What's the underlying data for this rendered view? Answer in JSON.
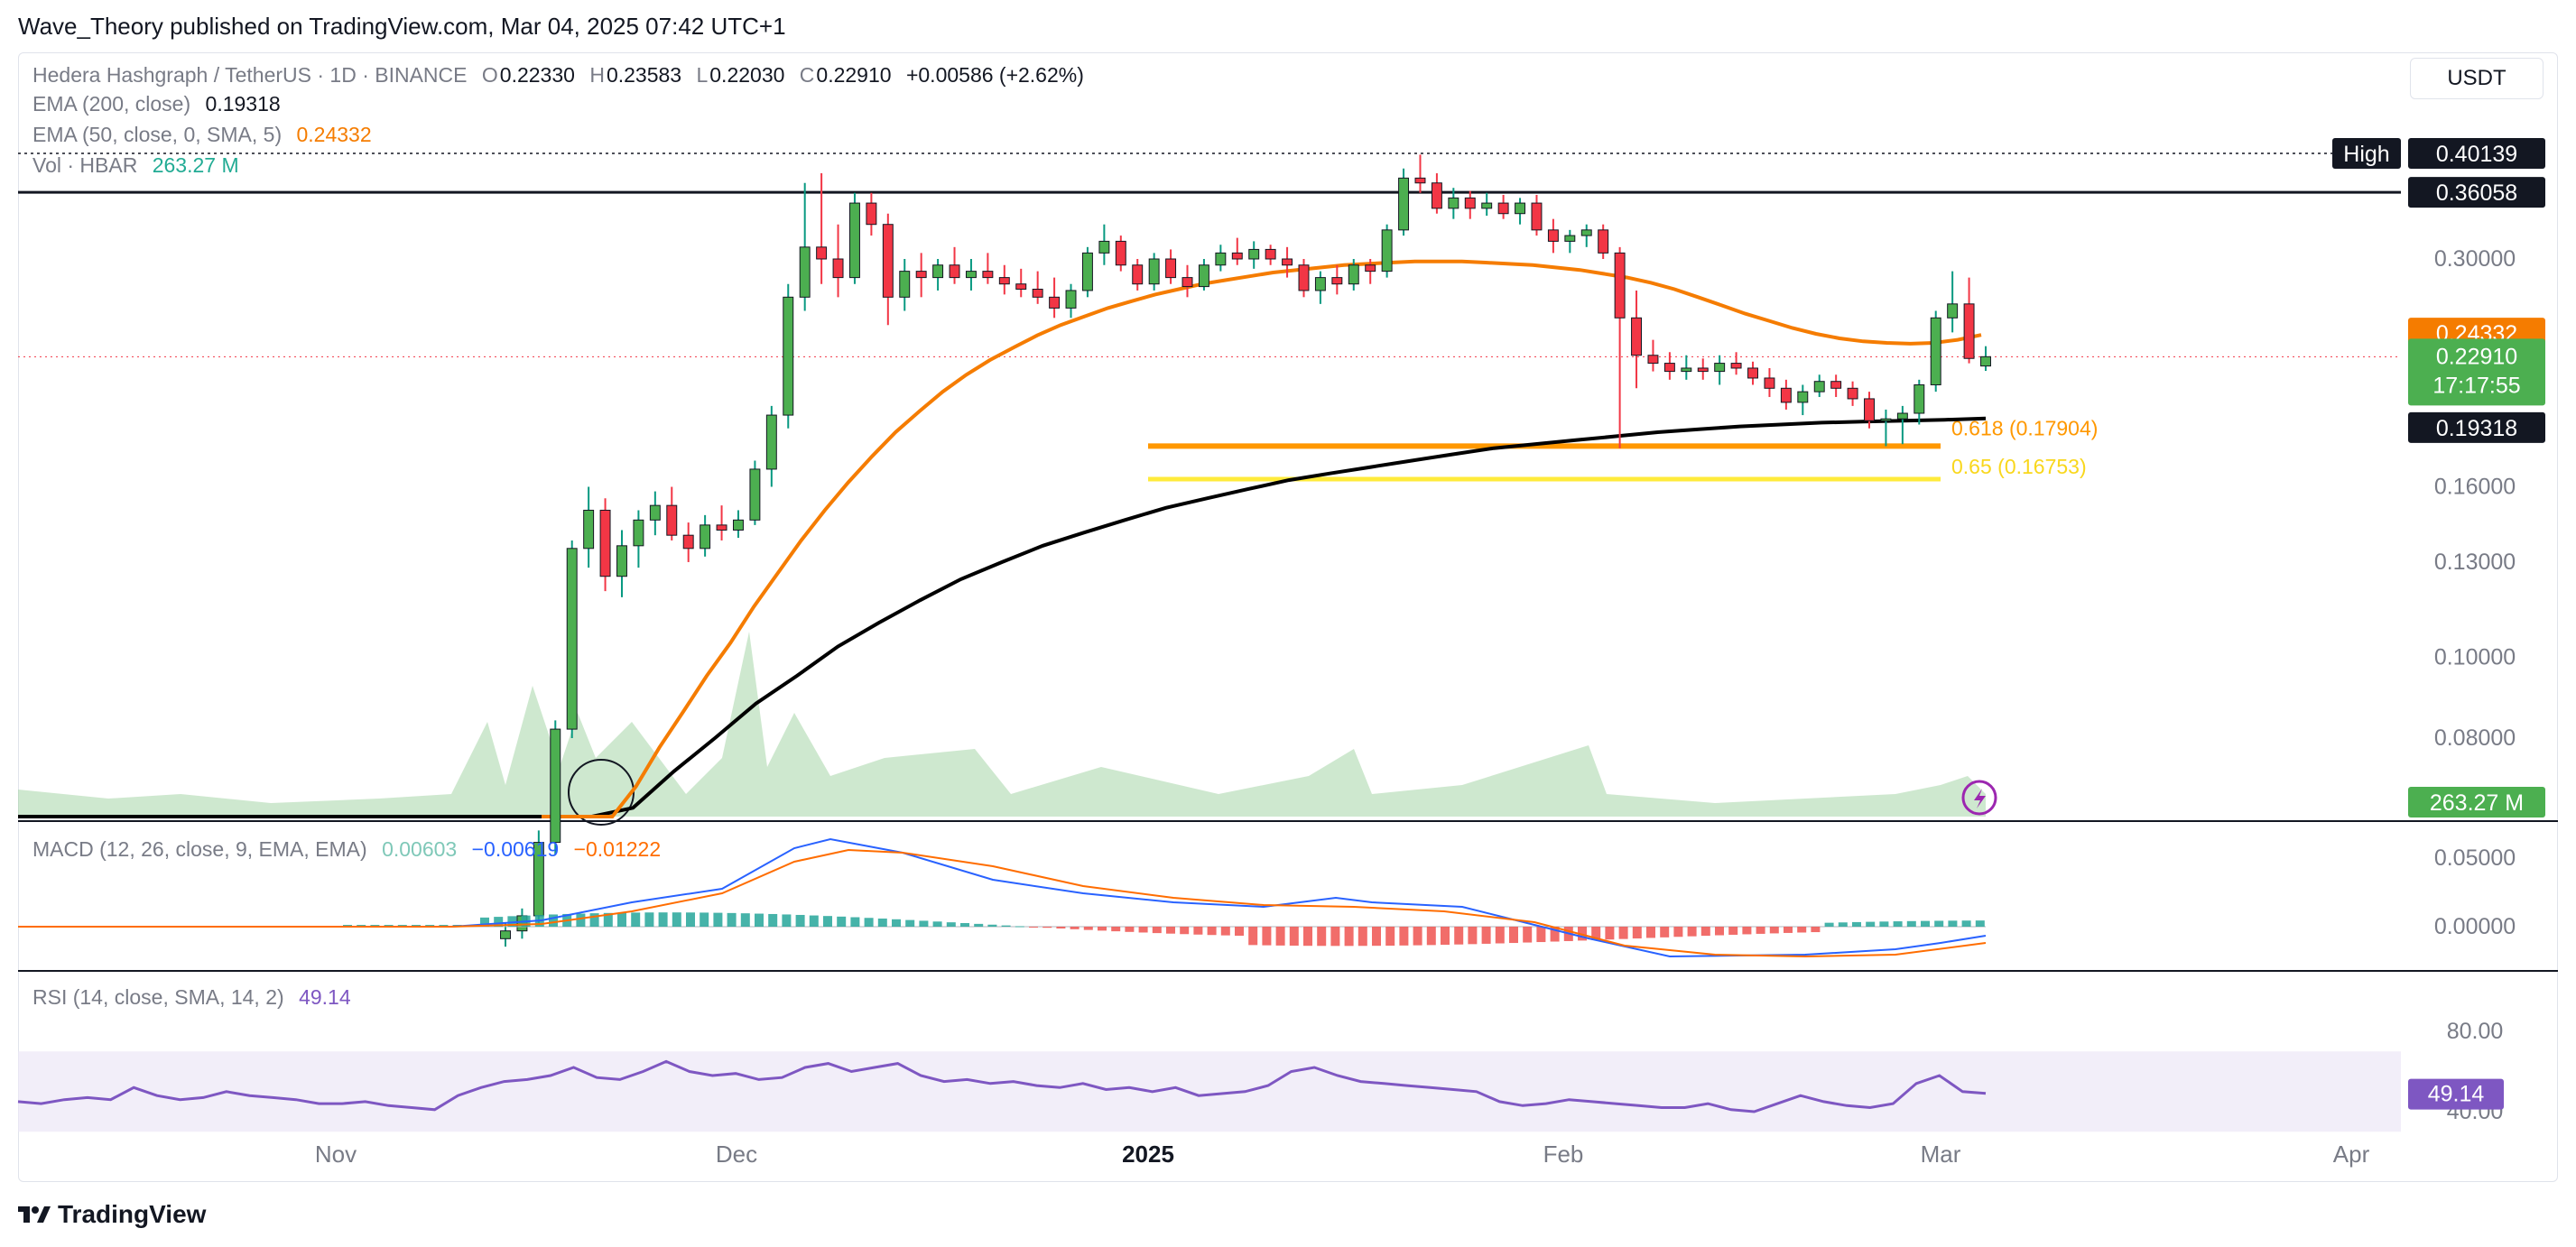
{
  "publish_line": "Wave_Theory published on TradingView.com, Mar 04, 2025 07:42 UTC+1",
  "currency": "USDT",
  "legend": {
    "symbol": "Hedera Hashgraph / TetherUS · 1D · BINANCE",
    "open_key": "O",
    "open": "0.22330",
    "high_key": "H",
    "high": "0.23583",
    "low_key": "L",
    "low": "0.22030",
    "close_key": "C",
    "close": "0.22910",
    "change": "+0.00586 (+2.62%)",
    "ema200_label": "EMA (200, close)",
    "ema200_value": "0.19318",
    "ema50_label": "EMA (50, close, 0, SMA, 5)",
    "ema50_value": "0.24332",
    "vol_label": "Vol · HBAR",
    "vol_value": "263.27 M"
  },
  "macd_legend": {
    "label": "MACD (12, 26, close, 9, EMA, EMA)",
    "hist": "0.00603",
    "macd": "−0.00619",
    "signal": "−0.01222"
  },
  "rsi_legend": {
    "label": "RSI (14, close, SMA, 14, 2)",
    "value": "49.14"
  },
  "footer": "TradingView",
  "colors": {
    "up": "#089981",
    "up_fill": "#4caf50",
    "down": "#f23645",
    "ema50": "#f57c00",
    "ema200": "#000000",
    "fib618": "#ff9800",
    "fib65": "#ffeb3b",
    "macd_line": "#2962ff",
    "signal_line": "#ff6d00",
    "rsi": "#7e57c2",
    "text_muted": "#787b86"
  },
  "chart_data": {
    "type": "candlestick",
    "symbol": "Hedera Hashgraph / TetherUS",
    "interval": "1D",
    "exchange": "BINANCE",
    "x_ticks": [
      "Nov",
      "Dec",
      "2025",
      "Feb",
      "Mar",
      "Apr"
    ],
    "price_ticks": [
      "0.30000",
      "0.16000",
      "0.13000",
      "0.10000",
      "0.08000"
    ],
    "price_scale": "log",
    "price_labels": {
      "high": {
        "label": "High",
        "value": "0.40139"
      },
      "resistance": "0.36058",
      "ema50": "0.24332",
      "last": "0.22910",
      "countdown": "17:17:55",
      "ema200": "0.19318",
      "volume": "263.27 M"
    },
    "horizontal_lines": [
      {
        "name": "High",
        "value": 0.40139
      },
      {
        "name": "Resistance",
        "value": 0.36058
      },
      {
        "name": "0.618",
        "value": 0.17904,
        "label": "0.618 (0.17904)"
      },
      {
        "name": "0.65",
        "value": 0.16753,
        "label": "0.65 (0.16753)"
      }
    ],
    "ohlc": [
      [
        0.046,
        0.048,
        0.045,
        0.047
      ],
      [
        0.047,
        0.05,
        0.046,
        0.049
      ],
      [
        0.049,
        0.062,
        0.048,
        0.06
      ],
      [
        0.06,
        0.084,
        0.058,
        0.082
      ],
      [
        0.082,
        0.138,
        0.08,
        0.135
      ],
      [
        0.135,
        0.16,
        0.128,
        0.15
      ],
      [
        0.15,
        0.155,
        0.12,
        0.125
      ],
      [
        0.125,
        0.142,
        0.118,
        0.136
      ],
      [
        0.136,
        0.15,
        0.128,
        0.146
      ],
      [
        0.146,
        0.158,
        0.14,
        0.152
      ],
      [
        0.152,
        0.16,
        0.138,
        0.14
      ],
      [
        0.14,
        0.145,
        0.13,
        0.135
      ],
      [
        0.135,
        0.148,
        0.132,
        0.144
      ],
      [
        0.144,
        0.152,
        0.138,
        0.142
      ],
      [
        0.142,
        0.15,
        0.139,
        0.146
      ],
      [
        0.146,
        0.172,
        0.144,
        0.168
      ],
      [
        0.168,
        0.2,
        0.16,
        0.195
      ],
      [
        0.195,
        0.28,
        0.188,
        0.27
      ],
      [
        0.27,
        0.37,
        0.26,
        0.31
      ],
      [
        0.31,
        0.38,
        0.28,
        0.3
      ],
      [
        0.3,
        0.33,
        0.27,
        0.285
      ],
      [
        0.285,
        0.36,
        0.28,
        0.35
      ],
      [
        0.35,
        0.36,
        0.32,
        0.33
      ],
      [
        0.33,
        0.34,
        0.25,
        0.27
      ],
      [
        0.27,
        0.3,
        0.26,
        0.29
      ],
      [
        0.29,
        0.305,
        0.27,
        0.285
      ],
      [
        0.285,
        0.3,
        0.275,
        0.295
      ],
      [
        0.295,
        0.31,
        0.28,
        0.285
      ],
      [
        0.285,
        0.3,
        0.275,
        0.29
      ],
      [
        0.29,
        0.305,
        0.28,
        0.285
      ],
      [
        0.285,
        0.295,
        0.272,
        0.28
      ],
      [
        0.28,
        0.292,
        0.27,
        0.276
      ],
      [
        0.276,
        0.29,
        0.265,
        0.27
      ],
      [
        0.27,
        0.285,
        0.255,
        0.262
      ],
      [
        0.262,
        0.28,
        0.255,
        0.275
      ],
      [
        0.275,
        0.31,
        0.27,
        0.305
      ],
      [
        0.305,
        0.33,
        0.295,
        0.315
      ],
      [
        0.315,
        0.32,
        0.29,
        0.295
      ],
      [
        0.295,
        0.3,
        0.275,
        0.28
      ],
      [
        0.28,
        0.305,
        0.275,
        0.3
      ],
      [
        0.3,
        0.308,
        0.28,
        0.285
      ],
      [
        0.285,
        0.295,
        0.27,
        0.278
      ],
      [
        0.278,
        0.3,
        0.275,
        0.295
      ],
      [
        0.295,
        0.312,
        0.29,
        0.305
      ],
      [
        0.305,
        0.318,
        0.295,
        0.3
      ],
      [
        0.3,
        0.315,
        0.292,
        0.308
      ],
      [
        0.308,
        0.312,
        0.295,
        0.3
      ],
      [
        0.3,
        0.31,
        0.285,
        0.295
      ],
      [
        0.295,
        0.3,
        0.27,
        0.275
      ],
      [
        0.275,
        0.29,
        0.265,
        0.285
      ],
      [
        0.285,
        0.295,
        0.272,
        0.28
      ],
      [
        0.28,
        0.3,
        0.275,
        0.295
      ],
      [
        0.295,
        0.3,
        0.28,
        0.29
      ],
      [
        0.29,
        0.33,
        0.285,
        0.325
      ],
      [
        0.325,
        0.385,
        0.32,
        0.375
      ],
      [
        0.375,
        0.4,
        0.36,
        0.37
      ],
      [
        0.37,
        0.38,
        0.34,
        0.345
      ],
      [
        0.345,
        0.365,
        0.335,
        0.355
      ],
      [
        0.355,
        0.362,
        0.335,
        0.345
      ],
      [
        0.345,
        0.36,
        0.338,
        0.35
      ],
      [
        0.35,
        0.358,
        0.335,
        0.34
      ],
      [
        0.34,
        0.355,
        0.33,
        0.35
      ],
      [
        0.35,
        0.358,
        0.32,
        0.325
      ],
      [
        0.325,
        0.335,
        0.305,
        0.315
      ],
      [
        0.315,
        0.325,
        0.305,
        0.32
      ],
      [
        0.32,
        0.33,
        0.31,
        0.325
      ],
      [
        0.325,
        0.33,
        0.3,
        0.305
      ],
      [
        0.305,
        0.31,
        0.178,
        0.255
      ],
      [
        0.255,
        0.275,
        0.21,
        0.23
      ],
      [
        0.23,
        0.24,
        0.22,
        0.225
      ],
      [
        0.225,
        0.232,
        0.215,
        0.22
      ],
      [
        0.22,
        0.23,
        0.215,
        0.222
      ],
      [
        0.222,
        0.228,
        0.215,
        0.22
      ],
      [
        0.22,
        0.23,
        0.212,
        0.225
      ],
      [
        0.225,
        0.232,
        0.218,
        0.222
      ],
      [
        0.222,
        0.226,
        0.212,
        0.216
      ],
      [
        0.216,
        0.222,
        0.205,
        0.21
      ],
      [
        0.21,
        0.215,
        0.198,
        0.202
      ],
      [
        0.202,
        0.212,
        0.195,
        0.208
      ],
      [
        0.208,
        0.218,
        0.205,
        0.214
      ],
      [
        0.214,
        0.218,
        0.205,
        0.21
      ],
      [
        0.21,
        0.214,
        0.2,
        0.204
      ],
      [
        0.204,
        0.208,
        0.188,
        0.192
      ],
      [
        0.192,
        0.198,
        0.179,
        0.193
      ],
      [
        0.193,
        0.2,
        0.18,
        0.196
      ],
      [
        0.196,
        0.215,
        0.19,
        0.212
      ],
      [
        0.212,
        0.26,
        0.208,
        0.255
      ],
      [
        0.255,
        0.29,
        0.245,
        0.265
      ],
      [
        0.265,
        0.285,
        0.225,
        0.228
      ],
      [
        0.2233,
        0.23583,
        0.2203,
        0.2291
      ]
    ],
    "ema50": [
      0.04,
      0.045,
      0.052,
      0.06,
      0.07,
      0.078,
      0.086,
      0.095,
      0.104,
      0.115,
      0.126,
      0.138,
      0.15,
      0.162,
      0.174,
      0.186,
      0.197,
      0.208,
      0.218,
      0.227,
      0.235,
      0.243,
      0.25,
      0.256,
      0.262,
      0.267,
      0.272,
      0.276,
      0.28,
      0.283,
      0.286,
      0.289,
      0.291,
      0.293,
      0.295,
      0.296,
      0.297,
      0.298,
      0.298,
      0.298,
      0.297,
      0.296,
      0.295,
      0.293,
      0.291,
      0.288,
      0.285,
      0.281,
      0.276,
      0.27,
      0.264,
      0.258,
      0.253,
      0.248,
      0.244,
      0.241,
      0.239,
      0.238,
      0.2375,
      0.238,
      0.24,
      0.2433
    ],
    "ema200": [
      0.05,
      0.0495,
      0.049,
      0.0488,
      0.0485,
      0.048,
      0.0478,
      0.0475,
      0.047,
      0.0468,
      0.047,
      0.049,
      0.052,
      0.056,
      0.06,
      0.066,
      0.073,
      0.08,
      0.088,
      0.095,
      0.103,
      0.11,
      0.117,
      0.124,
      0.13,
      0.136,
      0.141,
      0.146,
      0.151,
      0.155,
      0.159,
      0.163,
      0.166,
      0.169,
      0.172,
      0.175,
      0.178,
      0.18,
      0.182,
      0.184,
      0.186,
      0.1875,
      0.189,
      0.19,
      0.191,
      0.1915,
      0.192,
      0.1925,
      0.1932
    ],
    "volume_note": "Vol · HBAR 263.27 M",
    "macd": {
      "ticks": [
        "0.05000",
        "0.00000"
      ],
      "histogram_last": 0.00603,
      "macd_last": -0.00619,
      "signal_last": -0.01222
    },
    "rsi": {
      "ticks": [
        "80.00",
        "40.00"
      ],
      "last": 49.14,
      "values": [
        45,
        44,
        46,
        47,
        46,
        52,
        48,
        46,
        47,
        50,
        48,
        47,
        46,
        44,
        44,
        45,
        43,
        42,
        41,
        48,
        52,
        55,
        56,
        58,
        62,
        57,
        56,
        60,
        65,
        60,
        58,
        59,
        56,
        57,
        62,
        64,
        60,
        62,
        64,
        58,
        55,
        56,
        54,
        55,
        53,
        52,
        54,
        51,
        52,
        50,
        52,
        48,
        49,
        50,
        53,
        60,
        62,
        58,
        55,
        54,
        53,
        52,
        51,
        50,
        45,
        43,
        44,
        46,
        45,
        44,
        43,
        42,
        42,
        44,
        41,
        40,
        44,
        48,
        45,
        43,
        42,
        44,
        54,
        58,
        50,
        49.14
      ]
    }
  }
}
